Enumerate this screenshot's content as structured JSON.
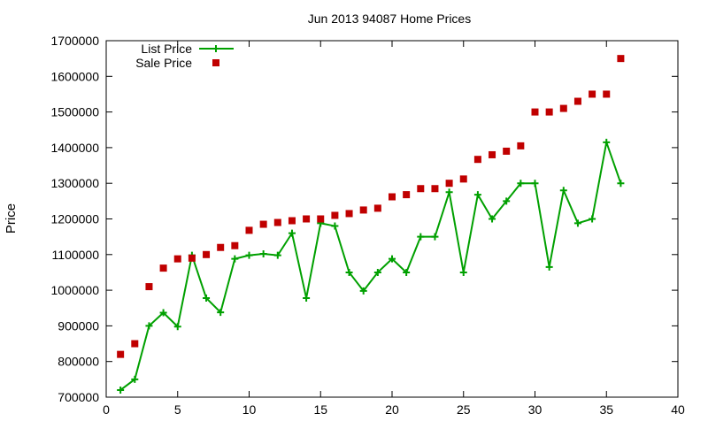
{
  "chart_data": {
    "type": "scatter",
    "title": "Jun 2013 94087 Home Prices",
    "xlabel": "",
    "ylabel": "Price",
    "xlim": [
      0,
      40
    ],
    "ylim": [
      700000,
      1700000
    ],
    "xticks": [
      0,
      5,
      10,
      15,
      20,
      25,
      30,
      35,
      40
    ],
    "yticks": [
      700000,
      800000,
      900000,
      1000000,
      1100000,
      1200000,
      1300000,
      1400000,
      1500000,
      1600000,
      1700000
    ],
    "grid": false,
    "legend_position": "top-left",
    "series": [
      {
        "name": "List Price",
        "style": "line+plus",
        "color": "#00a000",
        "x": [
          1,
          2,
          3,
          4,
          5,
          6,
          7,
          8,
          9,
          10,
          11,
          12,
          13,
          14,
          15,
          16,
          17,
          18,
          19,
          20,
          21,
          22,
          23,
          24,
          25,
          26,
          27,
          28,
          29,
          30,
          31,
          32,
          33,
          34,
          35,
          36
        ],
        "values": [
          720000,
          750000,
          900000,
          937000,
          898000,
          1098000,
          978000,
          938000,
          1088000,
          1098000,
          1102000,
          1098000,
          1160000,
          978000,
          1188000,
          1180000,
          1050000,
          998000,
          1050000,
          1088000,
          1050000,
          1150000,
          1150000,
          1275000,
          1050000,
          1268000,
          1200000,
          1250000,
          1300000,
          1300000,
          1065000,
          1280000,
          1188000,
          1200000,
          1415000,
          1300000
        ]
      },
      {
        "name": "Sale Price",
        "style": "square",
        "color": "#c00000",
        "x": [
          1,
          2,
          3,
          4,
          5,
          6,
          7,
          8,
          9,
          10,
          11,
          12,
          13,
          14,
          15,
          16,
          17,
          18,
          19,
          20,
          21,
          22,
          23,
          24,
          25,
          26,
          27,
          28,
          29,
          30,
          31,
          32,
          33,
          34,
          35,
          36
        ],
        "values": [
          820000,
          850000,
          1010000,
          1062000,
          1088000,
          1090000,
          1100000,
          1120000,
          1125000,
          1168000,
          1185000,
          1190000,
          1195000,
          1200000,
          1200000,
          1210000,
          1215000,
          1225000,
          1230000,
          1262000,
          1268000,
          1285000,
          1285000,
          1300000,
          1312000,
          1367000,
          1380000,
          1390000,
          1405000,
          1500000,
          1500000,
          1510000,
          1530000,
          1550000,
          1550000,
          1650000
        ]
      }
    ]
  }
}
